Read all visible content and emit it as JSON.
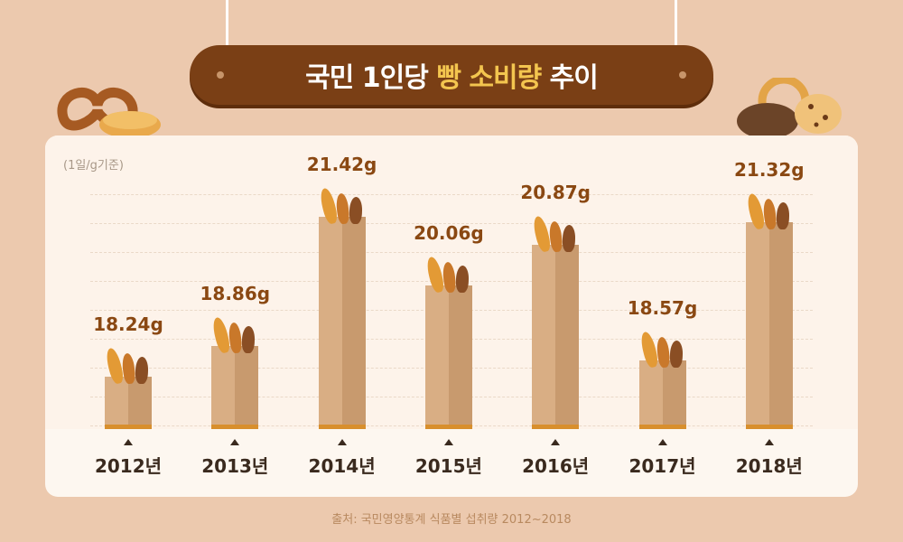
{
  "title": {
    "part1": "국민 1인당",
    "highlight": "빵",
    "part2": "소비량",
    "part3": "추이"
  },
  "unit_note": "(1일/g기준)",
  "source": "출처: 국민영양통계 식품별 섭취량 2012~2018",
  "colors": {
    "banner": "#7a3f15",
    "highlight": "#f3c54f",
    "value_text": "#8a4812",
    "bag": "#d9ae84",
    "bag_shade": "#c89a6e",
    "bag_stripe": "#d88f2d"
  },
  "icons": [
    "pretzel-icon",
    "bread-loaf-icon",
    "cookie-icon",
    "baguette-icon"
  ],
  "chart_data": {
    "type": "bar",
    "categories": [
      "2012년",
      "2013년",
      "2014년",
      "2015년",
      "2016년",
      "2017년",
      "2018년"
    ],
    "values": [
      18.24,
      18.86,
      21.42,
      20.06,
      20.87,
      18.57,
      21.32
    ],
    "value_labels": [
      "18.24g",
      "18.86g",
      "21.42g",
      "20.06g",
      "20.87g",
      "18.57g",
      "21.32g"
    ],
    "ylim": [
      17.2,
      21.6
    ],
    "grid": true,
    "legend": "none"
  }
}
